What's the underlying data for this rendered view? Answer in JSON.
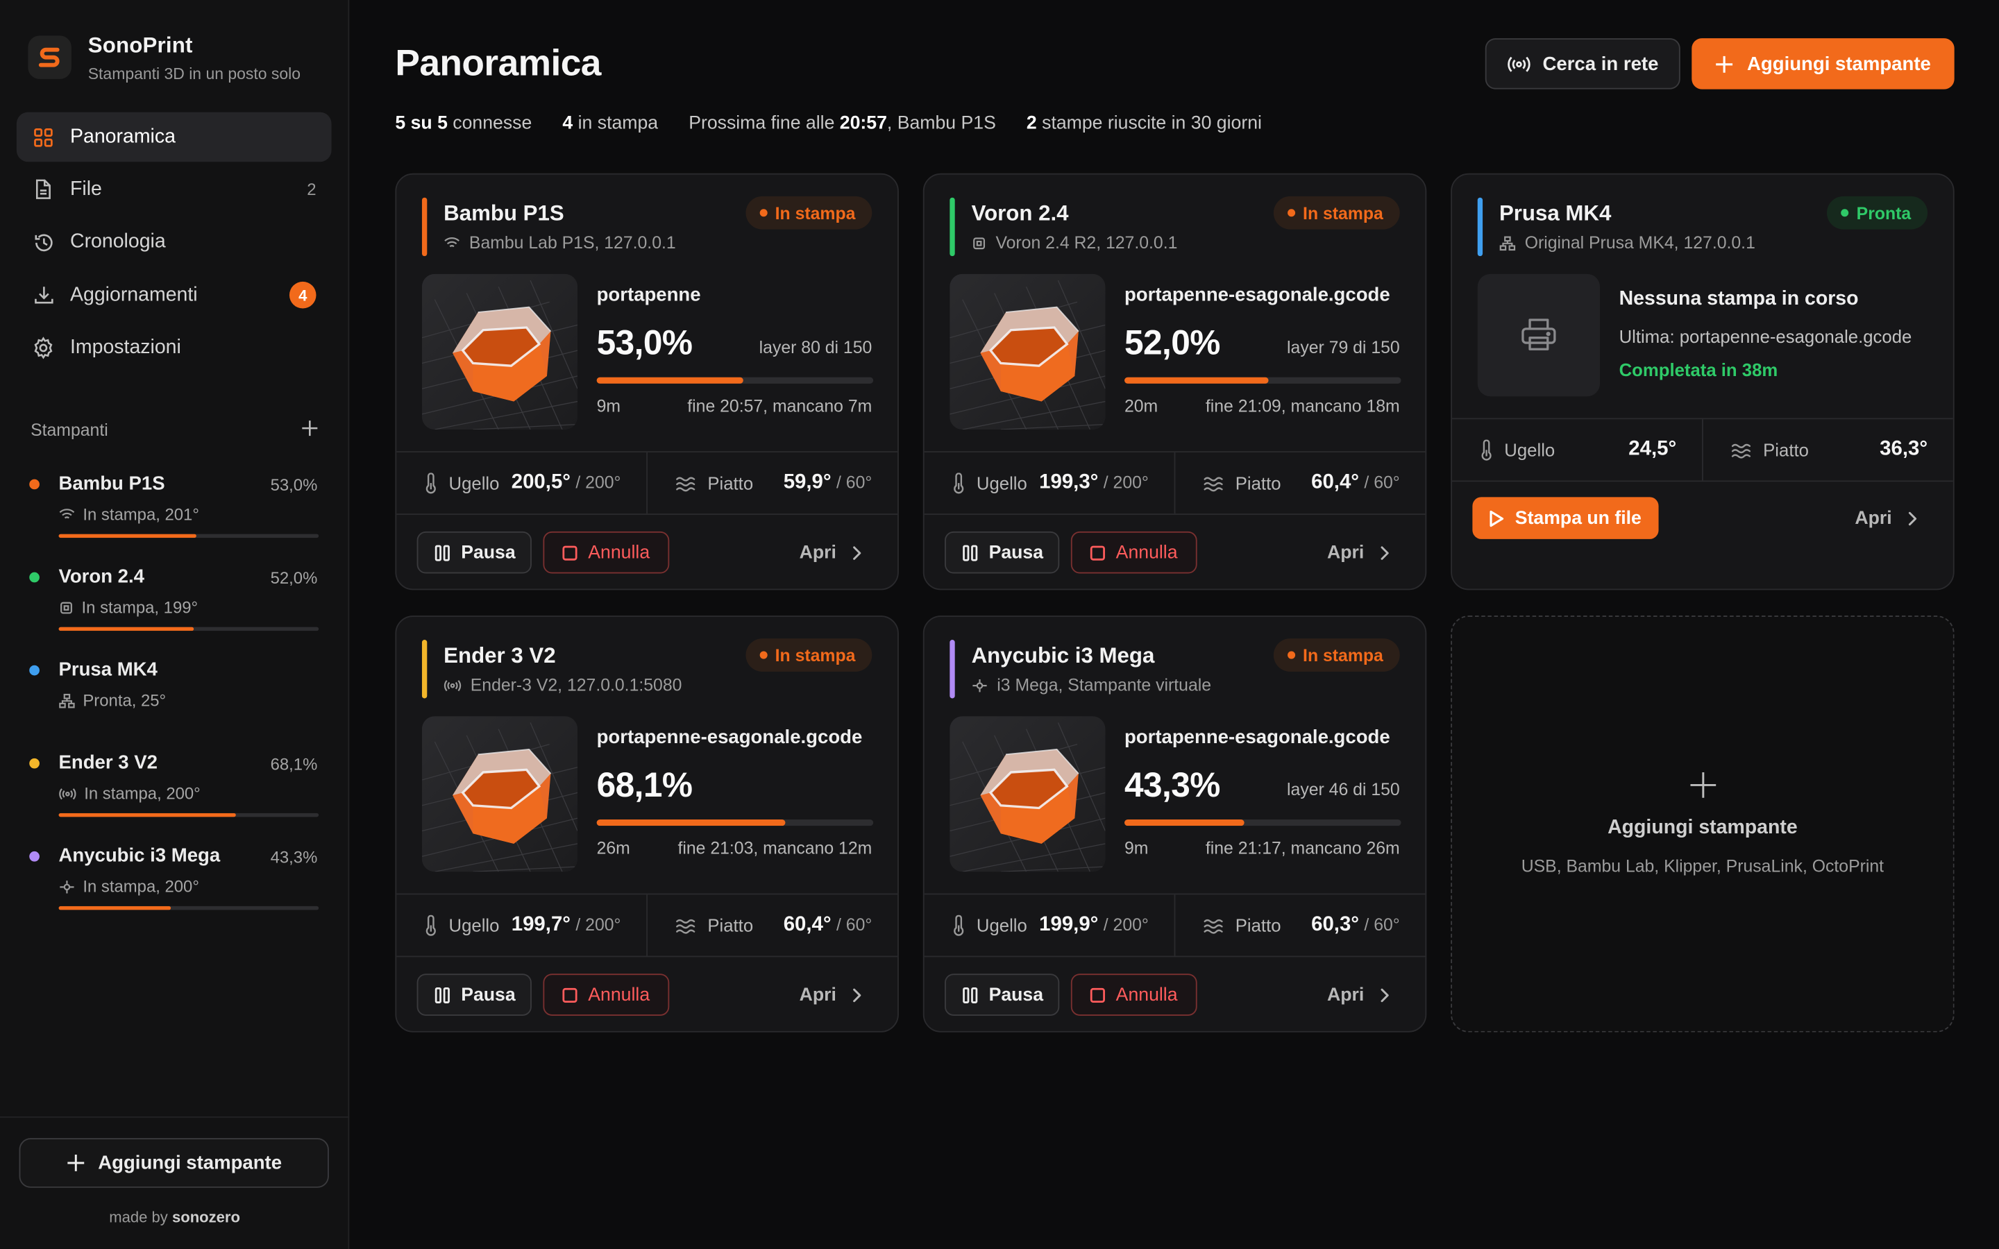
{
  "app": {
    "name": "SonoPrint",
    "tagline": "Stampanti 3D in un posto solo"
  },
  "colors": {
    "accent": "#f26a1b",
    "ready": "#2fca68",
    "danger": "#ff5c5c"
  },
  "nav": [
    {
      "label": "Panoramica",
      "icon": "grid-icon",
      "active": true
    },
    {
      "label": "File",
      "icon": "file-icon",
      "count": "2"
    },
    {
      "label": "Cronologia",
      "icon": "history-icon"
    },
    {
      "label": "Aggiornamenti",
      "icon": "download-icon",
      "badge": "4"
    },
    {
      "label": "Impostazioni",
      "icon": "gear-icon"
    }
  ],
  "sidebar": {
    "printers_heading": "Stampanti",
    "printers": [
      {
        "name": "Bambu P1S",
        "pct": "53,0%",
        "status": "In stampa, 201°",
        "color": "#f26a1b",
        "progress": 0.53
      },
      {
        "name": "Voron 2.4",
        "pct": "52,0%",
        "status": "In stampa, 199°",
        "color": "#2fca68",
        "progress": 0.52
      },
      {
        "name": "Prusa MK4",
        "pct": "",
        "status": "Pronta, 25°",
        "color": "#3f9ff0",
        "progress": null
      },
      {
        "name": "Ender 3 V2",
        "pct": "68,1%",
        "status": "In stampa, 200°",
        "color": "#f3b62a",
        "progress": 0.681
      },
      {
        "name": "Anycubic i3 Mega",
        "pct": "43,3%",
        "status": "In stampa, 200°",
        "color": "#b18bf5",
        "progress": 0.433
      }
    ],
    "add_button": "Aggiungi stampante",
    "made_by_prefix": "made by",
    "made_by_name": "sonozero"
  },
  "header": {
    "title": "Panoramica",
    "scan_button": "Cerca in rete",
    "add_button": "Aggiungi stampante",
    "stats": {
      "connected_bold": "5 su 5",
      "connected_rest": " connesse",
      "printing_bold": "4",
      "printing_rest": " in stampa",
      "next_prefix": "Prossima fine alle ",
      "next_time": "20:57",
      "next_printer": ", Bambu P1S",
      "success_bold": "2",
      "success_rest": " stampe riuscite in 30 giorni"
    }
  },
  "cards": [
    {
      "name": "Bambu P1S",
      "model": "Bambu Lab P1S, 127.0.0.1",
      "status": "In stampa",
      "accent": "#f26a1b",
      "file": "portapenne",
      "pct": "53,0%",
      "progress": 0.53,
      "layer": "layer 80 di 150",
      "elapsed": "9m",
      "eta": "fine 20:57, mancano 7m",
      "nozzle_label": "Ugello",
      "nozzle": "200,5°",
      "nozzle_target": "/ 200°",
      "bed_label": "Piatto",
      "bed": "59,9°",
      "bed_target": "/ 60°",
      "pause": "Pausa",
      "cancel": "Annulla",
      "open": "Apri"
    },
    {
      "name": "Voron 2.4",
      "model": "Voron 2.4 R2, 127.0.0.1",
      "status": "In stampa",
      "accent": "#2fca68",
      "file": "portapenne-esagonale.gcode",
      "pct": "52,0%",
      "progress": 0.52,
      "layer": "layer 79 di 150",
      "elapsed": "20m",
      "eta": "fine 21:09, mancano 18m",
      "nozzle_label": "Ugello",
      "nozzle": "199,3°",
      "nozzle_target": "/ 200°",
      "bed_label": "Piatto",
      "bed": "60,4°",
      "bed_target": "/ 60°",
      "pause": "Pausa",
      "cancel": "Annulla",
      "open": "Apri"
    },
    {
      "name": "Ender 3 V2",
      "model": "Ender-3 V2, 127.0.0.1:5080",
      "status": "In stampa",
      "accent": "#f3b62a",
      "file": "portapenne-esagonale.gcode",
      "pct": "68,1%",
      "progress": 0.681,
      "layer": "",
      "elapsed": "26m",
      "eta": "fine 21:03, mancano 12m",
      "nozzle_label": "Ugello",
      "nozzle": "199,7°",
      "nozzle_target": "/ 200°",
      "bed_label": "Piatto",
      "bed": "60,4°",
      "bed_target": "/ 60°",
      "pause": "Pausa",
      "cancel": "Annulla",
      "open": "Apri"
    },
    {
      "name": "Anycubic i3 Mega",
      "model": "i3 Mega, Stampante virtuale",
      "status": "In stampa",
      "accent": "#b18bf5",
      "file": "portapenne-esagonale.gcode",
      "pct": "43,3%",
      "progress": 0.433,
      "layer": "layer 46 di 150",
      "elapsed": "9m",
      "eta": "fine 21:17, mancano 26m",
      "nozzle_label": "Ugello",
      "nozzle": "199,9°",
      "nozzle_target": "/ 200°",
      "bed_label": "Piatto",
      "bed": "60,3°",
      "bed_target": "/ 60°",
      "pause": "Pausa",
      "cancel": "Annulla",
      "open": "Apri"
    }
  ],
  "idle_card": {
    "name": "Prusa MK4",
    "model": "Original Prusa MK4, 127.0.0.1",
    "status": "Pronta",
    "accent": "#3f9ff0",
    "title": "Nessuna stampa in corso",
    "last": "Ultima: portapenne-esagonale.gcode",
    "done": "Completata in 38m",
    "nozzle_label": "Ugello",
    "nozzle": "24,5°",
    "bed_label": "Piatto",
    "bed": "36,3°",
    "print_button": "Stampa un file",
    "open": "Apri"
  },
  "add_card": {
    "title": "Aggiungi stampante",
    "subtitle": "USB, Bambu Lab, Klipper, PrusaLink, OctoPrint"
  }
}
